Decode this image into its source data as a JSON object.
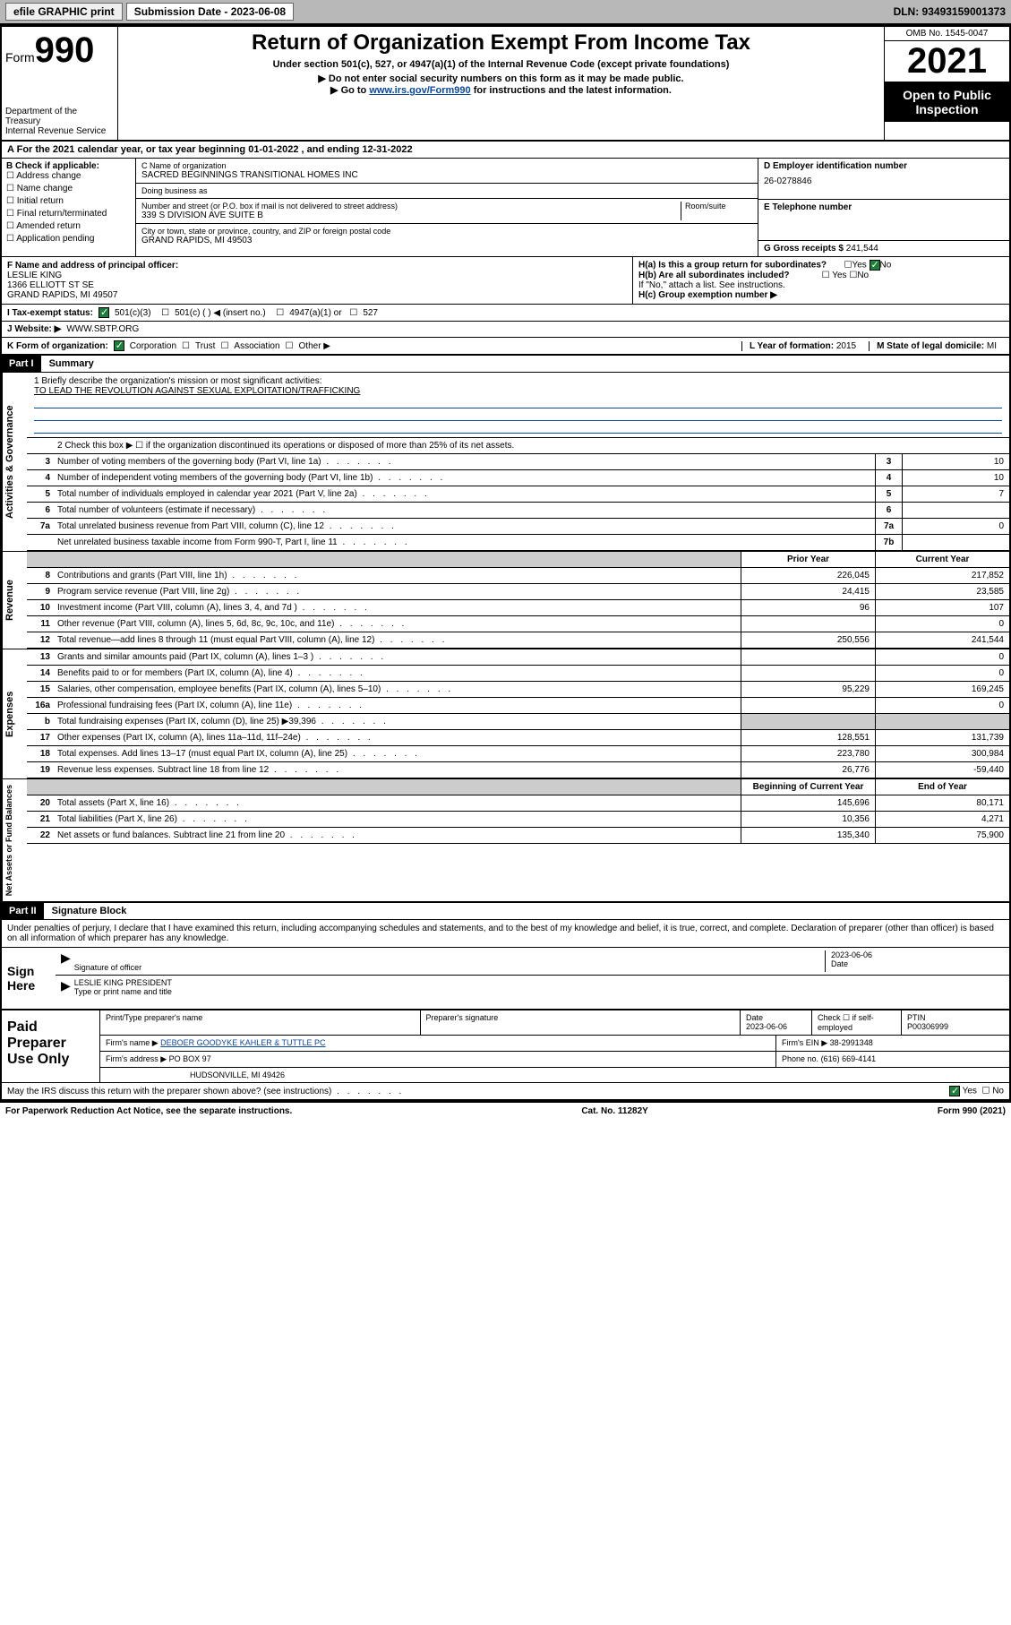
{
  "topbar": {
    "efile": "efile GRAPHIC print",
    "subdate_label": "Submission Date - 2023-06-08",
    "dln": "DLN: 93493159001373"
  },
  "header": {
    "form_label": "Form",
    "form_number": "990",
    "title": "Return of Organization Exempt From Income Tax",
    "subtitle": "Under section 501(c), 527, or 4947(a)(1) of the Internal Revenue Code (except private foundations)",
    "note1": "▶ Do not enter social security numbers on this form as it may be made public.",
    "note2_prefix": "▶ Go to ",
    "note2_link": "www.irs.gov/Form990",
    "note2_suffix": " for instructions and the latest information.",
    "dept": "Department of the Treasury",
    "irs": "Internal Revenue Service",
    "omb": "OMB No. 1545-0047",
    "year": "2021",
    "open": "Open to Public Inspection"
  },
  "taxyear": "For the 2021 calendar year, or tax year beginning 01-01-2022   , and ending 12-31-2022",
  "sectionB": {
    "label": "B Check if applicable:",
    "items": [
      "Address change",
      "Name change",
      "Initial return",
      "Final return/terminated",
      "Amended return",
      "Application pending"
    ]
  },
  "sectionC": {
    "name_lbl": "C Name of organization",
    "name": "SACRED BEGINNINGS TRANSITIONAL HOMES INC",
    "dba_lbl": "Doing business as",
    "addr_lbl": "Number and street (or P.O. box if mail is not delivered to street address)",
    "addr_room": "Room/suite",
    "addr": "339 S DIVISION AVE SUITE B",
    "city_lbl": "City or town, state or province, country, and ZIP or foreign postal code",
    "city": "GRAND RAPIDS, MI  49503"
  },
  "sectionD": {
    "lbl": "D Employer identification number",
    "val": "26-0278846"
  },
  "sectionE": {
    "lbl": "E Telephone number",
    "val": ""
  },
  "sectionG": {
    "lbl": "G Gross receipts $",
    "val": "241,544"
  },
  "sectionF": {
    "lbl": "F  Name and address of principal officer:",
    "name": "LESLIE KING",
    "addr1": "1366 ELLIOTT ST SE",
    "addr2": "GRAND RAPIDS, MI  49507"
  },
  "sectionH": {
    "ha": "H(a)  Is this a group return for subordinates?",
    "hb": "H(b)  Are all subordinates included?",
    "hb_note": "If \"No,\" attach a list. See instructions.",
    "hc": "H(c)  Group exemption number ▶",
    "yes": "Yes",
    "no": "No"
  },
  "sectionI": {
    "lbl": "I     Tax-exempt status:",
    "c3": "501(c)(3)",
    "c": "501(c) (  ) ◀ (insert no.)",
    "a1": "4947(a)(1) or",
    "s527": "527"
  },
  "sectionJ": {
    "lbl": "J     Website: ▶",
    "val": "WWW.SBTP.ORG"
  },
  "sectionK": {
    "lbl": "K Form of organization:",
    "corp": "Corporation",
    "trust": "Trust",
    "assoc": "Association",
    "other": "Other ▶"
  },
  "sectionL": {
    "lbl": "L Year of formation:",
    "val": "2015"
  },
  "sectionM": {
    "lbl": "M State of legal domicile:",
    "val": "MI"
  },
  "partI": {
    "hdr": "Part I",
    "title": "Summary",
    "line1_lbl": "1  Briefly describe the organization's mission or most significant activities:",
    "line1_val": "TO LEAD THE REVOLUTION AGAINST SEXUAL EXPLOITATION/TRAFFICKING",
    "line2": "2   Check this box ▶ ☐  if the organization discontinued its operations or disposed of more than 25% of its net assets."
  },
  "side_labels": {
    "gov": "Activities & Governance",
    "rev": "Revenue",
    "exp": "Expenses",
    "net": "Net Assets or Fund Balances"
  },
  "gov_lines": [
    {
      "n": "3",
      "t": "Number of voting members of the governing body (Part VI, line 1a)",
      "b": "3",
      "v": "10"
    },
    {
      "n": "4",
      "t": "Number of independent voting members of the governing body (Part VI, line 1b)",
      "b": "4",
      "v": "10"
    },
    {
      "n": "5",
      "t": "Total number of individuals employed in calendar year 2021 (Part V, line 2a)",
      "b": "5",
      "v": "7"
    },
    {
      "n": "6",
      "t": "Total number of volunteers (estimate if necessary)",
      "b": "6",
      "v": ""
    },
    {
      "n": "7a",
      "t": "Total unrelated business revenue from Part VIII, column (C), line 12",
      "b": "7a",
      "v": "0"
    },
    {
      "n": "",
      "t": "Net unrelated business taxable income from Form 990-T, Part I, line 11",
      "b": "7b",
      "v": ""
    }
  ],
  "cols_hdr": {
    "py": "Prior Year",
    "cy": "Current Year"
  },
  "rev_lines": [
    {
      "n": "8",
      "t": "Contributions and grants (Part VIII, line 1h)",
      "py": "226,045",
      "cy": "217,852"
    },
    {
      "n": "9",
      "t": "Program service revenue (Part VIII, line 2g)",
      "py": "24,415",
      "cy": "23,585"
    },
    {
      "n": "10",
      "t": "Investment income (Part VIII, column (A), lines 3, 4, and 7d )",
      "py": "96",
      "cy": "107"
    },
    {
      "n": "11",
      "t": "Other revenue (Part VIII, column (A), lines 5, 6d, 8c, 9c, 10c, and 11e)",
      "py": "",
      "cy": "0"
    },
    {
      "n": "12",
      "t": "Total revenue—add lines 8 through 11 (must equal Part VIII, column (A), line 12)",
      "py": "250,556",
      "cy": "241,544"
    }
  ],
  "exp_lines": [
    {
      "n": "13",
      "t": "Grants and similar amounts paid (Part IX, column (A), lines 1–3 )",
      "py": "",
      "cy": "0"
    },
    {
      "n": "14",
      "t": "Benefits paid to or for members (Part IX, column (A), line 4)",
      "py": "",
      "cy": "0"
    },
    {
      "n": "15",
      "t": "Salaries, other compensation, employee benefits (Part IX, column (A), lines 5–10)",
      "py": "95,229",
      "cy": "169,245"
    },
    {
      "n": "16a",
      "t": "Professional fundraising fees (Part IX, column (A), line 11e)",
      "py": "",
      "cy": "0"
    },
    {
      "n": "b",
      "t": "Total fundraising expenses (Part IX, column (D), line 25) ▶39,396",
      "py": "SHADE",
      "cy": "SHADE"
    },
    {
      "n": "17",
      "t": "Other expenses (Part IX, column (A), lines 11a–11d, 11f–24e)",
      "py": "128,551",
      "cy": "131,739"
    },
    {
      "n": "18",
      "t": "Total expenses. Add lines 13–17 (must equal Part IX, column (A), line 25)",
      "py": "223,780",
      "cy": "300,984"
    },
    {
      "n": "19",
      "t": "Revenue less expenses. Subtract line 18 from line 12",
      "py": "26,776",
      "cy": "-59,440"
    }
  ],
  "net_hdr": {
    "py": "Beginning of Current Year",
    "cy": "End of Year"
  },
  "net_lines": [
    {
      "n": "20",
      "t": "Total assets (Part X, line 16)",
      "py": "145,696",
      "cy": "80,171"
    },
    {
      "n": "21",
      "t": "Total liabilities (Part X, line 26)",
      "py": "10,356",
      "cy": "4,271"
    },
    {
      "n": "22",
      "t": "Net assets or fund balances. Subtract line 21 from line 20",
      "py": "135,340",
      "cy": "75,900"
    }
  ],
  "partII": {
    "hdr": "Part II",
    "title": "Signature Block"
  },
  "perjury": "Under penalties of perjury, I declare that I have examined this return, including accompanying schedules and statements, and to the best of my knowledge and belief, it is true, correct, and complete. Declaration of preparer (other than officer) is based on all information of which preparer has any knowledge.",
  "sign": {
    "here": "Sign Here",
    "sig_lbl": "Signature of officer",
    "date_lbl": "Date",
    "date": "2023-06-06",
    "name": "LESLIE KING  PRESIDENT",
    "name_lbl": "Type or print name and title"
  },
  "paid": {
    "label": "Paid Preparer Use Only",
    "r1": {
      "c1": "Print/Type preparer's name",
      "c2": "Preparer's signature",
      "c3": "Date",
      "c3v": "2023-06-06",
      "c4": "Check ☐ if self-employed",
      "c5": "PTIN",
      "c5v": "P00306999"
    },
    "r2": {
      "c1": "Firm's name    ▶",
      "c1v": "DEBOER GOODYKE KAHLER & TUTTLE PC",
      "c2": "Firm's EIN ▶",
      "c2v": "38-2991348"
    },
    "r3": {
      "c1": "Firm's address ▶",
      "c1v": "PO BOX 97",
      "c2": "Phone no.",
      "c2v": "(616) 669-4141"
    },
    "r4": {
      "c1": "HUDSONVILLE, MI  49426"
    }
  },
  "discuss": {
    "txt": "May the IRS discuss this return with the preparer shown above? (see instructions)",
    "yes": "Yes",
    "no": "No"
  },
  "footer": {
    "l": "For Paperwork Reduction Act Notice, see the separate instructions.",
    "m": "Cat. No. 11282Y",
    "r": "Form 990 (2021)"
  }
}
